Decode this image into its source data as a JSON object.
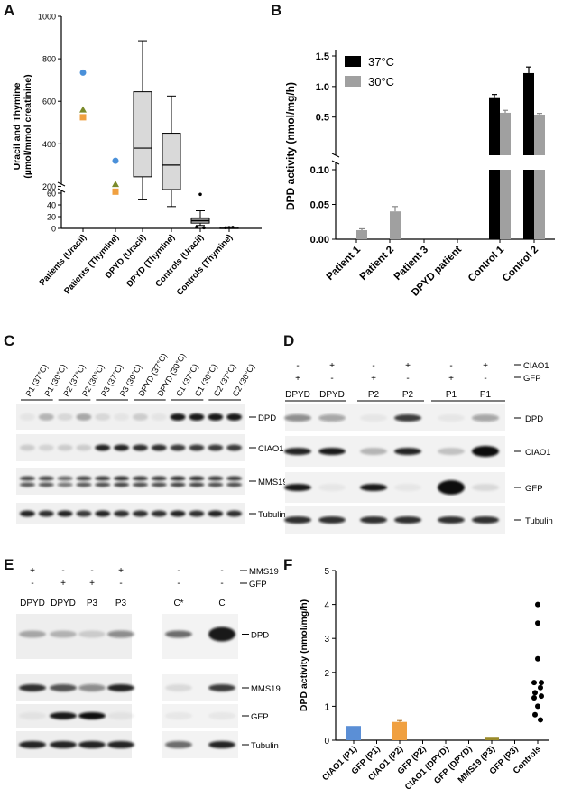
{
  "panels": {
    "A": "A",
    "B": "B",
    "C": "C",
    "D": "D",
    "E": "E",
    "F": "F"
  },
  "chart_data": [
    {
      "panel": "A",
      "type": "box",
      "ylabel": "Uracil and Thymine\n(µmol/mmol creatinine)",
      "ylabel_lines": [
        "Uracil and Thymine",
        "(µmol/mmol creatinine)"
      ],
      "y_upper_ticks": [
        "200",
        "400",
        "600",
        "800",
        "1000"
      ],
      "y_lower_ticks": [
        "0",
        "20",
        "40",
        "60"
      ],
      "categories": [
        "Patients (Uracil)",
        "Patients (Thymine)",
        "DPYD (Uracil)",
        "DPYD (Thymine)",
        "Controls (Uracil)",
        "Controls (Thymine)"
      ],
      "patient_points": [
        {
          "category": 0,
          "marker": "circle",
          "color": "#4a90d9",
          "value": 735
        },
        {
          "category": 0,
          "marker": "triangle",
          "color": "#7a8a2a",
          "value": 560
        },
        {
          "category": 0,
          "marker": "square",
          "color": "#f0a040",
          "value": 525
        },
        {
          "category": 1,
          "marker": "circle",
          "color": "#4a90d9",
          "value": 320
        },
        {
          "category": 1,
          "marker": "triangle",
          "color": "#7a8a2a",
          "value": 210
        },
        {
          "category": 1,
          "marker": "square",
          "color": "#f0a040",
          "value": 175
        }
      ],
      "boxes": [
        {
          "category": 2,
          "min": 140,
          "q1": 245,
          "median": 380,
          "q3": 645,
          "max": 885
        },
        {
          "category": 3,
          "min": 105,
          "q1": 185,
          "median": 300,
          "q3": 450,
          "max": 625
        },
        {
          "category": 4,
          "min": 5,
          "q1": 9,
          "median": 13,
          "q3": 17,
          "max": 30,
          "outliers": [
            58,
            2,
            1
          ]
        },
        {
          "category": 5,
          "min": 1,
          "q1": 1,
          "median": 1.5,
          "q3": 2,
          "max": 2.5,
          "points": [
            1,
            1.5,
            2
          ]
        }
      ]
    },
    {
      "panel": "B",
      "type": "bar",
      "ylabel": "DPD activity (nmol/mg/h)",
      "y_upper_ticks": [
        "0.5",
        "1.0",
        "1.5"
      ],
      "y_lower_ticks": [
        "0.00",
        "0.05",
        "0.10"
      ],
      "categories": [
        "Patient 1",
        "Patient 2",
        "Patient 3",
        "DPYD patient",
        "Control 1",
        "Control 2"
      ],
      "series": [
        {
          "name": "37°C",
          "color": "#000000",
          "values": [
            0,
            0,
            0,
            0,
            0.81,
            1.22
          ],
          "errors": [
            0,
            0,
            0,
            0,
            0.06,
            0.1
          ]
        },
        {
          "name": "30°C",
          "color": "#a0a0a0",
          "values": [
            0.013,
            0.04,
            0,
            0,
            0.57,
            0.54
          ],
          "errors": [
            0.002,
            0.007,
            0,
            0,
            0.04,
            0.02
          ]
        }
      ],
      "legend": "top-left"
    },
    {
      "panel": "F",
      "type": "bar",
      "ylabel": "DPD activity (nmol/mg/h)",
      "yticks": [
        "0",
        "1",
        "2",
        "3",
        "4",
        "5"
      ],
      "ylim": [
        0,
        5
      ],
      "categories": [
        "CIAO1 (P1)",
        "GFP (P1)",
        "CIAO1 (P2)",
        "GFP (P2)",
        "CIAO1 (DPYD)",
        "GFP (DPYD)",
        "MMS19 (P3)",
        "GFP (P3)",
        "Controls"
      ],
      "values": [
        0.42,
        0,
        0.54,
        0,
        0,
        0,
        0.1,
        0,
        null
      ],
      "colors": [
        "#5b8fd6",
        "#888888",
        "#f0a040",
        "#888888",
        "#888888",
        "#888888",
        "#9a8a2a",
        "#888888",
        "#000000"
      ],
      "controls_points": [
        4.0,
        3.45,
        2.4,
        1.7,
        1.7,
        1.55,
        1.4,
        1.3,
        1.25,
        1.0,
        0.75,
        0.6
      ]
    }
  ],
  "blotC": {
    "lanes": [
      "P1 (37°C)",
      "P1 (30°C)",
      "P2 (37°C)",
      "P2 (30°C)",
      "P3 (37°C)",
      "P3 (30°C)",
      "DPYD (37°C)",
      "DPYD (30°C)",
      "C1 (37°C)",
      "C1 (30°C)",
      "C2 (37°C)",
      "C2 (30°C)"
    ],
    "bands": [
      "DPD",
      "CIAO1",
      "MMS19",
      "Tubulin"
    ]
  },
  "blotD": {
    "ciao1_row": [
      "-",
      "+",
      "-",
      "+",
      "-",
      "+"
    ],
    "gfp_row": [
      "+",
      "-",
      "+",
      "-",
      "+",
      "-"
    ],
    "row_labels": [
      "CIAO1",
      "GFP"
    ],
    "lanes": [
      "DPYD",
      "DPYD",
      "P2",
      "P2",
      "P1",
      "P1"
    ],
    "bands": [
      "DPD",
      "CIAO1",
      "GFP",
      "Tubulin"
    ]
  },
  "blotE": {
    "mms19_row": [
      "+",
      "-",
      "-",
      "+",
      "-",
      "-"
    ],
    "gfp_row": [
      "-",
      "+",
      "+",
      "-",
      "-",
      "-"
    ],
    "row_labels": [
      "MMS19",
      "GFP"
    ],
    "lanes": [
      "DPYD",
      "DPYD",
      "P3",
      "P3",
      "C*",
      "C"
    ],
    "bands": [
      "DPD",
      "MMS19",
      "GFP",
      "Tubulin"
    ]
  }
}
